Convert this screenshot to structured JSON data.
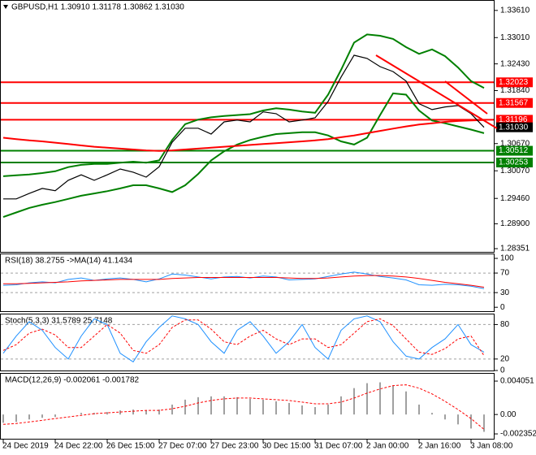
{
  "chart_data": [
    {
      "type": "line",
      "title": "GBPUSD,H1  1.30910 1.31178 1.30862 1.31030",
      "ylim": [
        1.2828,
        1.3384
      ],
      "yticks": [
        {
          "value": 1.3361,
          "label": "1.33610"
        },
        {
          "value": 1.3301,
          "label": "1.33010"
        },
        {
          "value": 1.3243,
          "label": "1.32430"
        },
        {
          "value": 1.3184,
          "label": "1.31840"
        },
        {
          "value": 1.3067,
          "label": "1.30670"
        },
        {
          "value": 1.3007,
          "label": "1.30070"
        },
        {
          "value": 1.2946,
          "label": "1.29460"
        },
        {
          "value": 1.289,
          "label": "1.28900"
        },
        {
          "value": 1.28351,
          "label": "1.28351"
        }
      ],
      "levels": [
        {
          "value": 1.32023,
          "label": "1.32023",
          "color": "#ff0000"
        },
        {
          "value": 1.31567,
          "label": "1.31567",
          "color": "#ff0000"
        },
        {
          "value": 1.31196,
          "label": "1.31196",
          "color": "#ff0000"
        },
        {
          "value": 1.30512,
          "label": "1.30512",
          "color": "#008000"
        },
        {
          "value": 1.30253,
          "label": "1.30253",
          "color": "#008000"
        }
      ],
      "last": {
        "value": 1.3103,
        "label": "1.31030",
        "color": "#000000"
      },
      "series": [
        {
          "color": "#008000",
          "width": 2,
          "values": [
            1.2995,
            1.2997,
            1.2999,
            1.3002,
            1.3006,
            1.3015,
            1.302,
            1.3022,
            1.3022,
            1.3025,
            1.3027,
            1.3025,
            1.303,
            1.3075,
            1.311,
            1.312,
            1.3125,
            1.3128,
            1.313,
            1.3132,
            1.314,
            1.3145,
            1.3142,
            1.3138,
            1.3135,
            1.3175,
            1.323,
            1.329,
            1.3308,
            1.3305,
            1.3298,
            1.328,
            1.3265,
            1.3275,
            1.326,
            1.3235,
            1.3205,
            1.319
          ]
        },
        {
          "color": "#008000",
          "width": 2,
          "values": [
            1.2905,
            1.2915,
            1.2925,
            1.2932,
            1.2938,
            1.2945,
            1.2952,
            1.2957,
            1.2962,
            1.2968,
            1.2975,
            1.2975,
            1.2968,
            1.296,
            1.2975,
            1.3,
            1.303,
            1.305,
            1.3065,
            1.3075,
            1.3082,
            1.3088,
            1.309,
            1.3092,
            1.3092,
            1.3085,
            1.3072,
            1.3065,
            1.308,
            1.313,
            1.3178,
            1.3175,
            1.314,
            1.3118,
            1.3112,
            1.3105,
            1.3098,
            1.309
          ]
        },
        {
          "color": "#ff0000",
          "width": 2,
          "values": [
            1.308,
            1.3077,
            1.3074,
            1.3072,
            1.3069,
            1.3066,
            1.3063,
            1.306,
            1.3058,
            1.3056,
            1.3054,
            1.3052,
            1.3051,
            1.3052,
            1.3054,
            1.3056,
            1.3058,
            1.306,
            1.3062,
            1.3064,
            1.3066,
            1.3068,
            1.307,
            1.3072,
            1.3074,
            1.3077,
            1.3081,
            1.3085,
            1.309,
            1.3095,
            1.31,
            1.3105,
            1.3109,
            1.3112,
            1.3115,
            1.3117,
            1.3118,
            1.3119
          ]
        },
        {
          "color": "#000000",
          "width": 1.2,
          "values": [
            1.2945,
            1.2945,
            1.2957,
            1.2968,
            1.2963,
            1.2986,
            1.2998,
            1.2986,
            1.2998,
            1.3011,
            1.3004,
            1.2993,
            1.3016,
            1.307,
            1.3101,
            1.3101,
            1.3088,
            1.3115,
            1.3119,
            1.3115,
            1.3137,
            1.3133,
            1.3115,
            1.3119,
            1.3124,
            1.316,
            1.3214,
            1.3262,
            1.3255,
            1.3237,
            1.3226,
            1.3205,
            1.3155,
            1.3142,
            1.3148,
            1.3151,
            1.3133,
            1.3103
          ]
        }
      ]
    },
    {
      "type": "line",
      "title": "RSI(18) 38.2755 ->MA(14) 41.1434",
      "ylim": [
        -8,
        110
      ],
      "yticks": [
        100,
        70,
        30,
        0
      ],
      "level_lines": [
        70,
        30
      ],
      "series": [
        {
          "color": "#1e90ff",
          "width": 1,
          "values": [
            45,
            46,
            50,
            52,
            50,
            57,
            60,
            55,
            58,
            60,
            57,
            52,
            58,
            68,
            66,
            62,
            58,
            62,
            63,
            60,
            64,
            62,
            56,
            57,
            58,
            63,
            68,
            72,
            68,
            63,
            60,
            56,
            46,
            45,
            47,
            46,
            43,
            38
          ]
        },
        {
          "color": "#ff0000",
          "width": 1,
          "values": [
            48,
            48,
            49,
            50,
            51,
            52,
            54,
            55,
            56,
            57,
            57,
            57,
            57,
            59,
            60,
            61,
            61,
            61,
            61,
            61,
            61,
            61,
            60,
            59,
            59,
            60,
            62,
            64,
            65,
            65,
            64,
            62,
            59,
            55,
            51,
            48,
            45,
            41
          ]
        }
      ]
    },
    {
      "type": "line",
      "title": "Stoch(5,3,3) 31.5789 25.7148",
      "ylim": [
        0,
        99
      ],
      "yticks": [
        80,
        20,
        0
      ],
      "level_lines": [
        80,
        20
      ],
      "series": [
        {
          "color": "#1e90ff",
          "width": 1,
          "values": [
            30,
            60,
            85,
            70,
            40,
            20,
            60,
            90,
            80,
            30,
            15,
            50,
            75,
            95,
            90,
            80,
            50,
            30,
            70,
            85,
            60,
            30,
            50,
            80,
            40,
            20,
            70,
            90,
            95,
            85,
            50,
            25,
            20,
            40,
            55,
            80,
            45,
            32
          ]
        },
        {
          "color": "#ff0000",
          "width": 1,
          "dash": true,
          "values": [
            35,
            45,
            65,
            72,
            62,
            40,
            40,
            60,
            80,
            65,
            35,
            30,
            45,
            75,
            88,
            88,
            72,
            50,
            45,
            60,
            70,
            55,
            45,
            55,
            55,
            40,
            45,
            65,
            85,
            90,
            78,
            55,
            32,
            28,
            38,
            55,
            60,
            26
          ]
        }
      ]
    },
    {
      "type": "bar",
      "title": "MACD(12,26,9) -0.002061 -0.001782",
      "ylim": [
        -0.00294,
        0.00504
      ],
      "yticks": [
        0.004051,
        {
          "value": 0,
          "label": "0.00"
        },
        -0.002352
      ],
      "categories": [
        "24 Dec 2019",
        null,
        null,
        null,
        "24 Dec 22:00",
        null,
        null,
        null,
        "26 Dec 15:00",
        null,
        null,
        null,
        "27 Dec 07:00",
        null,
        null,
        null,
        "27 Dec 23:00",
        null,
        null,
        null,
        "30 Dec 15:00",
        null,
        null,
        null,
        "31 Dec 07:00",
        null,
        null,
        null,
        "2 Jan 00:00",
        null,
        null,
        null,
        "2 Jan 16:00",
        null,
        null,
        null,
        "3 Jan 08:00",
        null
      ],
      "series": [
        {
          "type": "bar",
          "color": "#a0a0a0",
          "values": [
            -0.001,
            -0.0009,
            -0.0006,
            -0.0004,
            -0.0003,
            0,
            0.0002,
            0.0002,
            0.0003,
            0.0005,
            0.0006,
            0.0005,
            0.0006,
            0.0012,
            0.0018,
            0.0021,
            0.0022,
            0.0022,
            0.0021,
            0.0019,
            0.0018,
            0.0016,
            0.0014,
            0.0011,
            0.0009,
            0.0012,
            0.0022,
            0.0032,
            0.0038,
            0.0039,
            0.0035,
            0.0028,
            0.0012,
            0.0002,
            -0.0006,
            -0.0012,
            -0.0017,
            -0.0021
          ]
        },
        {
          "type": "line",
          "color": "#ff0000",
          "width": 1,
          "dash": true,
          "values": [
            -0.0012,
            -0.0011,
            -0.0009,
            -0.0007,
            -0.0005,
            -0.0003,
            -0.0001,
            0.0001,
            0.0002,
            0.0003,
            0.0004,
            0.0005,
            0.0005,
            0.0007,
            0.001,
            0.0014,
            0.0017,
            0.0019,
            0.002,
            0.002,
            0.0019,
            0.0018,
            0.0017,
            0.0015,
            0.0013,
            0.0013,
            0.0015,
            0.002,
            0.0026,
            0.0031,
            0.0035,
            0.0036,
            0.0032,
            0.0025,
            0.0016,
            0.0006,
            -0.0005,
            -0.0018
          ]
        }
      ]
    }
  ]
}
